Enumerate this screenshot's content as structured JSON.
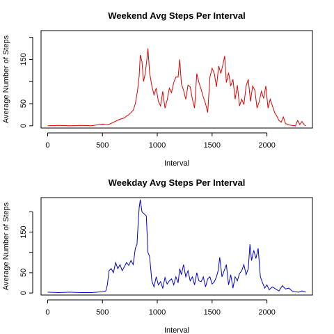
{
  "chart_data": [
    {
      "type": "line",
      "title": "Weekend Avg Steps Per Interval",
      "xlabel": "Interval",
      "ylabel": "Average Number of Steps",
      "xlim": [
        -60,
        2415
      ],
      "ylim": [
        -5,
        215
      ],
      "xticks": [
        0,
        500,
        1000,
        1500,
        2000
      ],
      "yticks": [
        0,
        50,
        150
      ],
      "grid": false,
      "series": [
        {
          "color": "#e00000",
          "x": [
            0,
            100,
            200,
            300,
            400,
            450,
            500,
            550,
            600,
            650,
            700,
            720,
            740,
            760,
            780,
            800,
            820,
            835,
            845,
            860,
            875,
            890,
            905,
            915,
            930,
            950,
            970,
            990,
            1010,
            1030,
            1050,
            1070,
            1090,
            1110,
            1130,
            1150,
            1170,
            1190,
            1205,
            1220,
            1240,
            1260,
            1280,
            1300,
            1320,
            1340,
            1360,
            1380,
            1400,
            1420,
            1440,
            1460,
            1480,
            1500,
            1520,
            1540,
            1560,
            1580,
            1600,
            1615,
            1630,
            1650,
            1670,
            1690,
            1710,
            1730,
            1750,
            1770,
            1790,
            1810,
            1830,
            1850,
            1870,
            1890,
            1910,
            1930,
            1950,
            1970,
            1990,
            2010,
            2030,
            2050,
            2070,
            2090,
            2110,
            2130,
            2150,
            2170,
            2200,
            2230,
            2260,
            2280,
            2300,
            2320,
            2340,
            2355
          ],
          "y": [
            0,
            1,
            0,
            1,
            0,
            2,
            4,
            2,
            8,
            14,
            18,
            22,
            25,
            30,
            35,
            50,
            80,
            112,
            160,
            145,
            100,
            118,
            150,
            175,
            120,
            90,
            70,
            85,
            55,
            45,
            78,
            40,
            58,
            85,
            75,
            98,
            110,
            110,
            150,
            95,
            80,
            60,
            92,
            88,
            60,
            40,
            118,
            98,
            82,
            65,
            50,
            30,
            110,
            130,
            118,
            88,
            135,
            118,
            140,
            158,
            98,
            120,
            90,
            105,
            60,
            92,
            45,
            60,
            48,
            90,
            105,
            55,
            90,
            80,
            40,
            55,
            78,
            62,
            90,
            40,
            60,
            45,
            30,
            22,
            12,
            8,
            20,
            5,
            2,
            1,
            0,
            12,
            3,
            10,
            2,
            0
          ]
        }
      ]
    },
    {
      "type": "line",
      "title": "Weekday Avg Steps Per Interval",
      "xlabel": "Interval",
      "ylabel": "Average Number of Steps",
      "xlim": [
        -60,
        2415
      ],
      "ylim": [
        -5,
        235
      ],
      "xticks": [
        0,
        500,
        1000,
        1500,
        2000
      ],
      "yticks": [
        0,
        50,
        150
      ],
      "grid": false,
      "series": [
        {
          "color": "#0000d0",
          "x": [
            0,
            100,
            200,
            300,
            400,
            450,
            500,
            530,
            545,
            560,
            580,
            600,
            620,
            640,
            660,
            680,
            700,
            720,
            740,
            760,
            780,
            800,
            815,
            825,
            835,
            845,
            860,
            880,
            900,
            915,
            930,
            950,
            970,
            990,
            1010,
            1030,
            1050,
            1070,
            1090,
            1110,
            1130,
            1150,
            1170,
            1190,
            1205,
            1220,
            1240,
            1260,
            1280,
            1300,
            1320,
            1340,
            1360,
            1380,
            1400,
            1420,
            1440,
            1460,
            1480,
            1500,
            1520,
            1540,
            1555,
            1570,
            1590,
            1610,
            1630,
            1650,
            1670,
            1690,
            1710,
            1730,
            1750,
            1770,
            1790,
            1810,
            1830,
            1845,
            1860,
            1880,
            1900,
            1920,
            1940,
            1960,
            1980,
            2000,
            2020,
            2050,
            2080,
            2110,
            2140,
            2170,
            2200,
            2230,
            2260,
            2290,
            2320,
            2355
          ],
          "y": [
            2,
            1,
            2,
            1,
            1,
            2,
            3,
            5,
            20,
            55,
            60,
            50,
            75,
            60,
            70,
            55,
            65,
            75,
            68,
            80,
            70,
            110,
            120,
            170,
            210,
            230,
            200,
            195,
            190,
            100,
            90,
            30,
            15,
            40,
            20,
            28,
            12,
            38,
            22,
            30,
            35,
            20,
            40,
            25,
            60,
            45,
            70,
            40,
            55,
            30,
            40,
            20,
            50,
            30,
            28,
            40,
            15,
            35,
            40,
            22,
            28,
            40,
            55,
            88,
            40,
            55,
            70,
            20,
            45,
            12,
            40,
            30,
            48,
            55,
            70,
            45,
            60,
            120,
            80,
            105,
            85,
            110,
            40,
            25,
            12,
            20,
            8,
            15,
            10,
            5,
            18,
            10,
            12,
            5,
            3,
            2,
            5,
            2
          ]
        }
      ]
    }
  ]
}
